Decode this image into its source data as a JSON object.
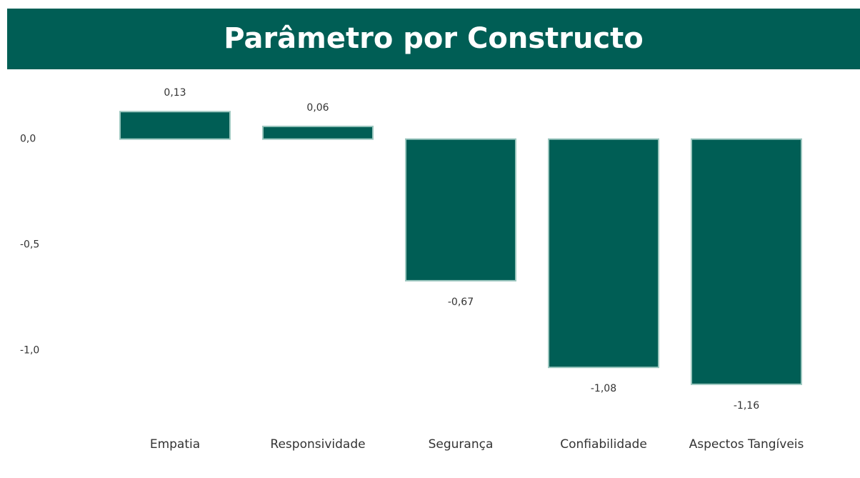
{
  "chart_data": {
    "type": "bar",
    "title": "Parâmetro por Constructo",
    "categories": [
      "Empatia",
      "Responsividade",
      "Segurança",
      "Confiabilidade",
      "Aspectos Tangíveis"
    ],
    "values": [
      0.13,
      0.06,
      -0.67,
      -1.08,
      -1.16
    ],
    "value_labels": [
      "0,13",
      "0,06",
      "-0,67",
      "-1,08",
      "-1,16"
    ],
    "color": "#005e55",
    "ylim": [
      -1.37,
      0.32
    ],
    "yticks": [
      {
        "value": 0,
        "label": "0,0"
      },
      {
        "value": -0.5,
        "label": "-0,5"
      },
      {
        "value": -1,
        "label": "-1,0"
      }
    ],
    "grid": false
  }
}
